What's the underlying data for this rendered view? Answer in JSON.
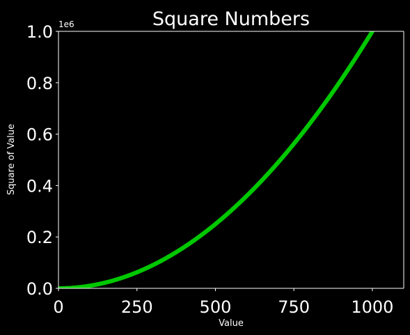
{
  "chart_data": {
    "type": "scatter",
    "title": "Square Numbers",
    "xlabel": "Value",
    "ylabel": "Square of Value",
    "y_offset_text": "1e6",
    "xlim": [
      0,
      1100
    ],
    "ylim": [
      0,
      1000000
    ],
    "x_ticks": [
      0,
      250,
      500,
      750,
      1000
    ],
    "x_tick_labels": [
      "0",
      "250",
      "500",
      "750",
      "1000"
    ],
    "y_ticks": [
      0,
      200000,
      400000,
      600000,
      800000,
      1000000
    ],
    "y_tick_labels": [
      "0.0",
      "0.2",
      "0.4",
      "0.6",
      "0.8",
      "1.0"
    ],
    "grid": false,
    "series": [
      {
        "x_start": 1,
        "x_end": 1000,
        "x_step": 1,
        "function": "y = x^2"
      }
    ]
  },
  "colors": {
    "background": "#000000",
    "axes_face": "#000000",
    "spine": "#ffffff",
    "text": "#ffffff",
    "series": "#00c800"
  }
}
